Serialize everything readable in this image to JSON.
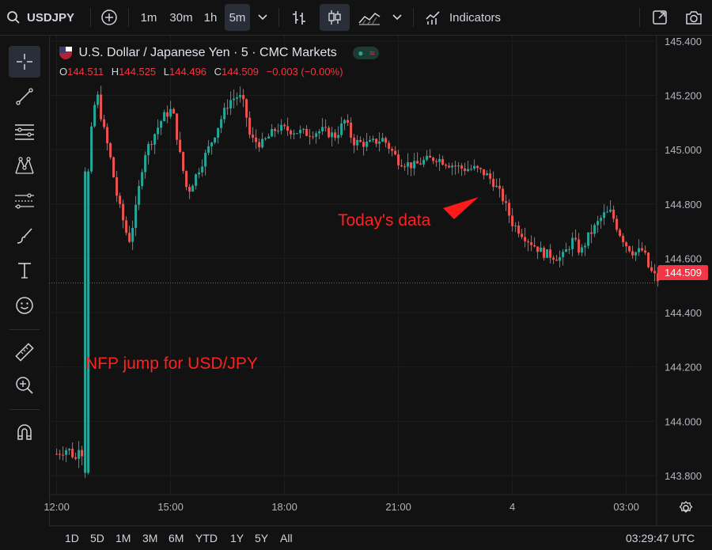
{
  "toolbar": {
    "symbol": "USDJPY",
    "intervals": [
      "1m",
      "30m",
      "1h",
      "5m"
    ],
    "active_interval": "5m",
    "indicators_label": "Indicators",
    "icons": [
      "search-icon",
      "add-symbol-icon",
      "chevron-down-icon",
      "bar-style-icon",
      "candles-icon",
      "area-chart-icon",
      "indicators-icon",
      "fullscreen-icon",
      "camera-icon"
    ]
  },
  "legend": {
    "title": "U.S. Dollar / Japanese Yen · 5 · CMC Markets",
    "o_label": "O",
    "o_value": "144.511",
    "h_label": "H",
    "h_value": "144.525",
    "l_label": "L",
    "l_value": "144.496",
    "c_label": "C",
    "c_value": "144.509",
    "change": "−0.003 (−0.00%)"
  },
  "annotations": {
    "nfp": "NFP jump for USD/JPY",
    "today": "Today's data"
  },
  "price_scale": {
    "current_price": "144.509",
    "current_price_color": "#f23645"
  },
  "bottom": {
    "ranges": [
      "1D",
      "5D",
      "1M",
      "3M",
      "6M",
      "YTD",
      "1Y",
      "5Y",
      "All"
    ],
    "time": "03:29:47 UTC"
  },
  "colors": {
    "up": "#26a69a",
    "down": "#ef5350",
    "annotation": "#ff2020",
    "background": "#121212"
  },
  "chart_data": {
    "type": "candlestick",
    "y_ticks": [
      "145.400",
      "145.200",
      "145.000",
      "144.800",
      "144.600",
      "144.400",
      "144.200",
      "144.000",
      "143.800"
    ],
    "x_ticks": [
      "12:00",
      "15:00",
      "18:00",
      "21:00",
      "4",
      "03:00"
    ],
    "ylim": [
      143.73,
      145.42
    ],
    "x_range_hours": [
      11.8,
      27.8
    ],
    "close_path": [
      [
        12.0,
        143.88
      ],
      [
        12.3,
        143.9
      ],
      [
        12.5,
        143.86
      ],
      [
        12.6,
        143.92
      ],
      [
        12.75,
        143.84
      ],
      [
        12.82,
        144.9
      ],
      [
        12.9,
        145.05
      ],
      [
        13.05,
        145.22
      ],
      [
        13.2,
        145.1
      ],
      [
        13.4,
        144.98
      ],
      [
        13.6,
        144.82
      ],
      [
        13.9,
        144.66
      ],
      [
        14.05,
        144.75
      ],
      [
        14.3,
        144.98
      ],
      [
        14.55,
        145.05
      ],
      [
        14.8,
        145.12
      ],
      [
        15.05,
        145.15
      ],
      [
        15.25,
        144.98
      ],
      [
        15.45,
        144.84
      ],
      [
        15.75,
        144.93
      ],
      [
        16.05,
        145.02
      ],
      [
        16.35,
        145.12
      ],
      [
        16.55,
        145.18
      ],
      [
        16.8,
        145.2
      ],
      [
        16.95,
        145.16
      ],
      [
        17.1,
        145.04
      ],
      [
        17.4,
        145.02
      ],
      [
        17.8,
        145.08
      ],
      [
        18.2,
        145.07
      ],
      [
        18.6,
        145.06
      ],
      [
        19.0,
        145.07
      ],
      [
        19.35,
        145.05
      ],
      [
        19.6,
        145.11
      ],
      [
        19.8,
        145.03
      ],
      [
        20.2,
        145.02
      ],
      [
        20.6,
        145.04
      ],
      [
        21.0,
        144.96
      ],
      [
        21.4,
        144.94
      ],
      [
        21.7,
        144.96
      ],
      [
        22.0,
        144.97
      ],
      [
        22.3,
        144.95
      ],
      [
        22.7,
        144.93
      ],
      [
        23.0,
        144.93
      ],
      [
        23.3,
        144.91
      ],
      [
        23.5,
        144.88
      ],
      [
        23.75,
        144.82
      ],
      [
        24.0,
        144.73
      ],
      [
        24.4,
        144.67
      ],
      [
        24.8,
        144.62
      ],
      [
        25.3,
        144.6
      ],
      [
        25.6,
        144.67
      ],
      [
        25.8,
        144.62
      ],
      [
        26.0,
        144.68
      ],
      [
        26.4,
        144.76
      ],
      [
        26.6,
        144.77
      ],
      [
        26.8,
        144.7
      ],
      [
        27.0,
        144.65
      ],
      [
        27.2,
        144.62
      ],
      [
        27.45,
        144.63
      ],
      [
        27.6,
        144.56
      ],
      [
        27.9,
        144.51
      ]
    ]
  }
}
